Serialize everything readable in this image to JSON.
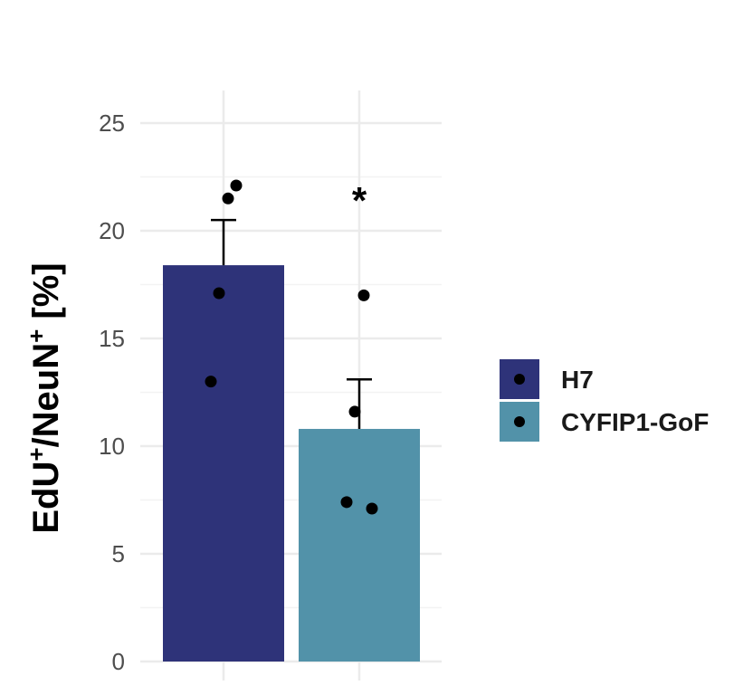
{
  "chart_data": {
    "type": "bar",
    "categories": [
      "H7",
      "CYFIP1-GoF"
    ],
    "values": [
      18.4,
      10.8
    ],
    "error_upper": [
      20.5,
      13.1
    ],
    "points": [
      {
        "category": "H7",
        "values": [
          22.1,
          21.5,
          17.1,
          13.0
        ]
      },
      {
        "category": "CYFIP1-GoF",
        "values": [
          17.0,
          11.6,
          7.4,
          7.1
        ]
      }
    ],
    "colors": [
      "#2e3379",
      "#5292a9"
    ],
    "point_color": "#000000",
    "ylabel_parts": [
      {
        "text": "EdU",
        "sup": false
      },
      {
        "text": "+",
        "sup": true
      },
      {
        "text": "/NeuN",
        "sup": false
      },
      {
        "text": "+",
        "sup": true
      },
      {
        "text": " [%]",
        "sup": false
      }
    ],
    "xlabel": "",
    "ylim": [
      0,
      25
    ],
    "yticks": [
      "0",
      "5",
      "10",
      "15",
      "20",
      "25"
    ],
    "annotations": [
      {
        "category": "CYFIP1-GoF",
        "text": "*"
      }
    ],
    "legend": {
      "entries": [
        "H7",
        "CYFIP1-GoF"
      ],
      "position": "right"
    },
    "grid": true
  }
}
